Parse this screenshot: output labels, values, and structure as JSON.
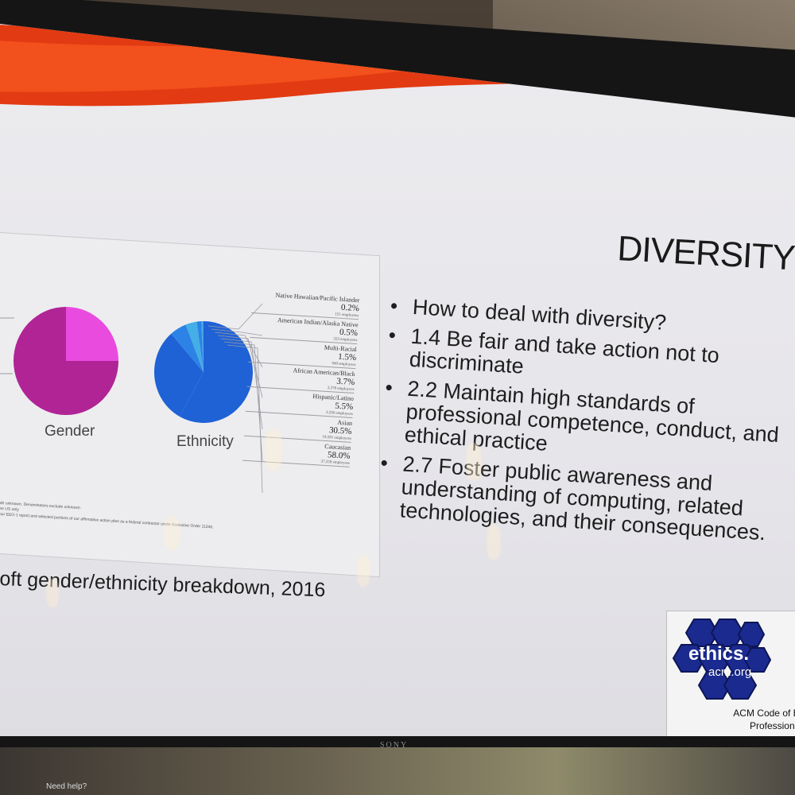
{
  "slide": {
    "title": "DIVERSITY",
    "bullets": [
      "How to deal with diversity?",
      "1.4 Be fair and take action not to discriminate",
      "2.2 Maintain high standards of professional competence, conduct, and ethical practice",
      "2.7 Foster public awareness and understanding of computing, related technologies, and their consequences."
    ],
    "caption": "oft gender/ethnicity breakdown, 2016"
  },
  "chart": {
    "gender_label": "Gender",
    "ethnicity_label": "Ethnicity",
    "legend": [
      {
        "name": "Native Hawaiian/Pacific Islander",
        "pct": "0.2%",
        "employees": "151 employees"
      },
      {
        "name": "American Indian/Alaska Native",
        "pct": "0.5%",
        "employees": "323 employees"
      },
      {
        "name": "Multi-Racial",
        "pct": "1.5%",
        "employees": "949 employees"
      },
      {
        "name": "African American/Black",
        "pct": "3.7%",
        "employees": "2,378 employees"
      },
      {
        "name": "Hispanic/Latino",
        "pct": "5.5%",
        "employees": "3,556 employees"
      },
      {
        "name": "Asian",
        "pct": "30.5%",
        "employees": "19,591 employees"
      },
      {
        "name": "Caucasian",
        "pct": "58.0%",
        "employees": "37,259 employees"
      }
    ],
    "footnote": [
      "de unknown. Denominators exclude unknown.",
      "ne US only",
      "our EEO-1 report and selected portions of our affirmative action plan as a federal contractor under Executive Order 11246."
    ],
    "gender_share": [
      0.25,
      0.75
    ],
    "ethnicity_share": [
      0.2,
      0.5,
      1.5,
      3.7,
      5.5,
      30.5,
      58.0
    ],
    "colors": {
      "gender_a": "#ea4bdf",
      "gender_b": "#b02496",
      "eth_main": "#1f62d6",
      "eth_alt": "#2d82e6",
      "eth_light": "#44aee6"
    }
  },
  "acm": {
    "ethics": "ethics.",
    "org": "acm.org",
    "code": "ACM Code of Et",
    "professional": "Professional"
  },
  "room": {
    "brand": "SONY",
    "help": "Need help?"
  }
}
